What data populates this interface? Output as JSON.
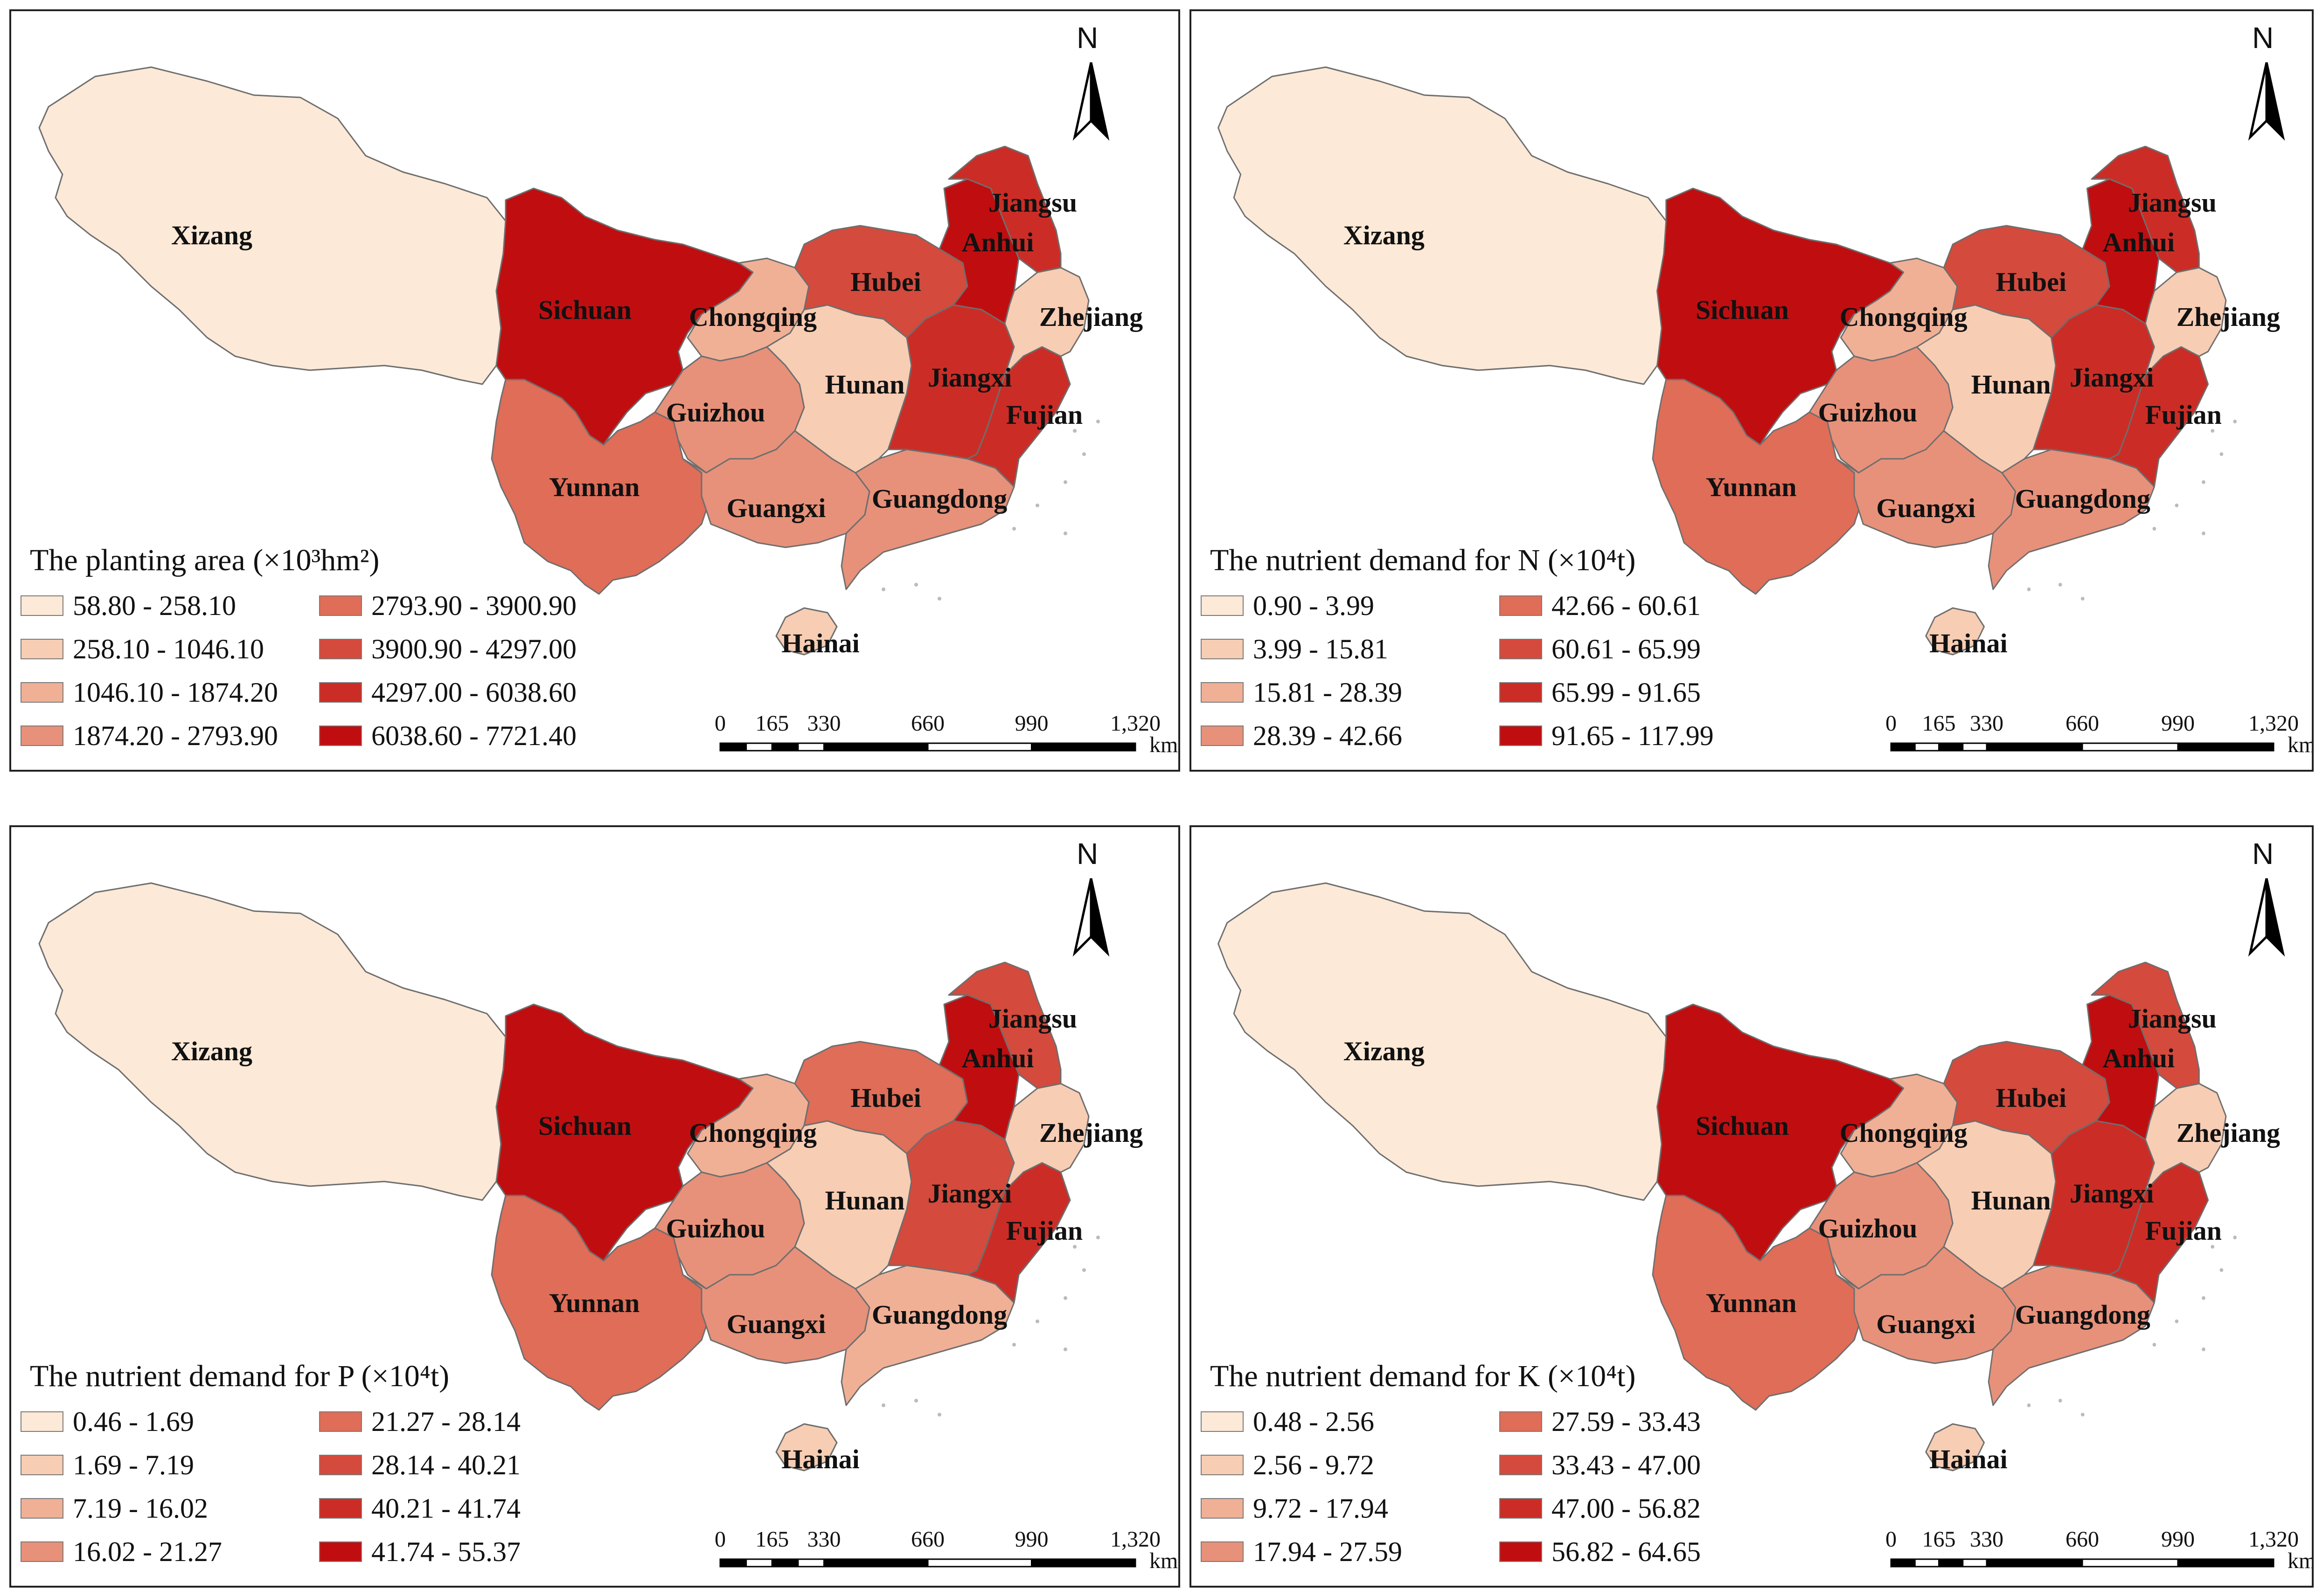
{
  "provinces": [
    "Xizang",
    "Sichuan",
    "Chongqing",
    "Yunnan",
    "Guizhou",
    "Guangxi",
    "Guangdong",
    "Hunan",
    "Hubei",
    "Jiangxi",
    "Fujian",
    "Zhejiang",
    "Anhui",
    "Jiangsu",
    "Hainai"
  ],
  "north_label": "N",
  "scale": {
    "ticks": [
      "0",
      "165",
      "330",
      "660",
      "990",
      "1,320"
    ],
    "unit": "km"
  },
  "classes": [
    "#fde9d7",
    "#f7cdb4",
    "#f0b096",
    "#e7917a",
    "#df6d58",
    "#d44a3c",
    "#cb2d26",
    "#c00e10"
  ],
  "panels": [
    {
      "id": "area",
      "legend_title": "The planting area (×10³hm²)",
      "legend_ranges": [
        "58.80 - 258.10",
        "258.10 - 1046.10",
        "1046.10 - 1874.20",
        "1874.20 - 2793.90",
        "2793.90 - 3900.90",
        "3900.90 - 4297.00",
        "4297.00 - 6038.60",
        "6038.60 - 7721.40"
      ],
      "province_class": {
        "Xizang": 0,
        "Sichuan": 7,
        "Chongqing": 2,
        "Yunnan": 4,
        "Guizhou": 3,
        "Guangxi": 3,
        "Guangdong": 3,
        "Hunan": 1,
        "Hubei": 5,
        "Jiangxi": 6,
        "Fujian": 6,
        "Zhejiang": 1,
        "Anhui": 7,
        "Jiangsu": 6,
        "Hainai": 1
      }
    },
    {
      "id": "N",
      "legend_title": "The nutrient demand for N (×10⁴t)",
      "legend_ranges": [
        "0.90 - 3.99",
        "3.99 - 15.81",
        "15.81 - 28.39",
        "28.39 - 42.66",
        "42.66 - 60.61",
        "60.61 - 65.99",
        "65.99 - 91.65",
        "91.65 - 117.99"
      ],
      "province_class": {
        "Xizang": 0,
        "Sichuan": 7,
        "Chongqing": 2,
        "Yunnan": 4,
        "Guizhou": 3,
        "Guangxi": 3,
        "Guangdong": 3,
        "Hunan": 1,
        "Hubei": 5,
        "Jiangxi": 6,
        "Fujian": 6,
        "Zhejiang": 1,
        "Anhui": 7,
        "Jiangsu": 6,
        "Hainai": 1
      }
    },
    {
      "id": "P",
      "legend_title": "The nutrient demand for P (×10⁴t)",
      "legend_ranges": [
        "0.46 - 1.69",
        "1.69 - 7.19",
        "7.19 - 16.02",
        "16.02 - 21.27",
        "21.27 - 28.14",
        "28.14 - 40.21",
        "40.21 - 41.74",
        "41.74 - 55.37"
      ],
      "province_class": {
        "Xizang": 0,
        "Sichuan": 7,
        "Chongqing": 2,
        "Yunnan": 4,
        "Guizhou": 3,
        "Guangxi": 3,
        "Guangdong": 2,
        "Hunan": 1,
        "Hubei": 4,
        "Jiangxi": 5,
        "Fujian": 6,
        "Zhejiang": 1,
        "Anhui": 7,
        "Jiangsu": 5,
        "Hainai": 1
      }
    },
    {
      "id": "K",
      "legend_title": "The nutrient demand for K (×10⁴t)",
      "legend_ranges": [
        "0.48 - 2.56",
        "2.56 - 9.72",
        "9.72 - 17.94",
        "17.94 - 27.59",
        "27.59 - 33.43",
        "33.43 - 47.00",
        "47.00 - 56.82",
        "56.82 - 64.65"
      ],
      "province_class": {
        "Xizang": 0,
        "Sichuan": 7,
        "Chongqing": 2,
        "Yunnan": 4,
        "Guizhou": 3,
        "Guangxi": 3,
        "Guangdong": 3,
        "Hunan": 1,
        "Hubei": 5,
        "Jiangxi": 6,
        "Fujian": 6,
        "Zhejiang": 1,
        "Anhui": 7,
        "Jiangsu": 5,
        "Hainai": 1
      }
    }
  ]
}
